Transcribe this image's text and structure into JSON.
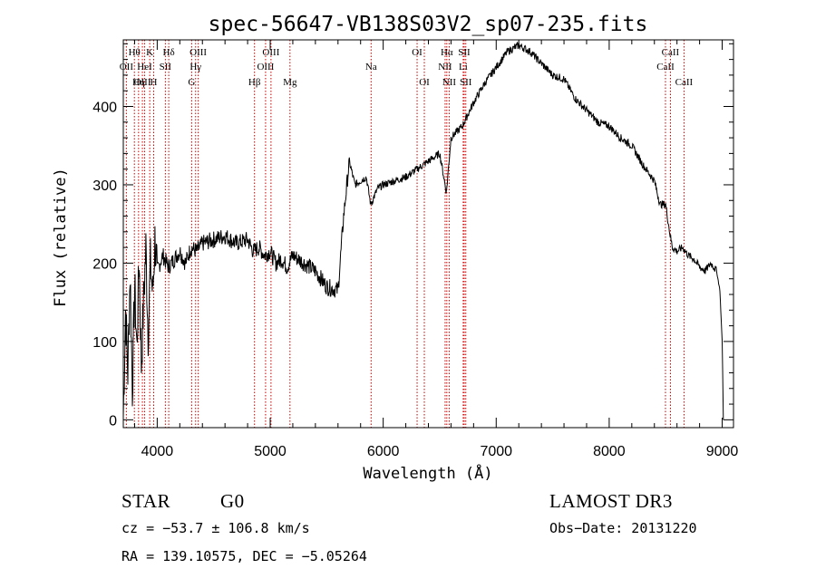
{
  "chart_data": {
    "type": "line",
    "title": "spec-56647-VB138S03V2_sp07-235.fits",
    "xlabel": "Wavelength (Å)",
    "ylabel": "Flux (relative)",
    "xlim": [
      3700,
      9100
    ],
    "ylim": [
      -10,
      485
    ],
    "xticks": [
      4000,
      5000,
      6000,
      7000,
      8000,
      9000
    ],
    "yticks": [
      0,
      100,
      200,
      300,
      400
    ],
    "grid": false,
    "line_color": "#000000",
    "marker_color": "#cc0000",
    "series": [
      {
        "x": [
          3700,
          3720,
          3740,
          3760,
          3780,
          3800,
          3820,
          3840,
          3860,
          3880,
          3900,
          3920,
          3940,
          3960,
          3980,
          4000,
          4050,
          4100,
          4150,
          4200,
          4250,
          4300,
          4350,
          4400,
          4500,
          4600,
          4700,
          4800,
          4850,
          4900,
          4950,
          5000,
          5050,
          5100,
          5150,
          5200,
          5300,
          5400,
          5500,
          5600,
          5650,
          5700,
          5750,
          5800,
          5850,
          5890,
          5950,
          6000,
          6100,
          6200,
          6300,
          6400,
          6500,
          6560,
          6600,
          6700,
          6800,
          6900,
          7000,
          7100,
          7200,
          7300,
          7400,
          7500,
          7600,
          7700,
          7800,
          7900,
          8000,
          8100,
          8200,
          8300,
          8400,
          8450,
          8500,
          8540,
          8560,
          8600,
          8650,
          8700,
          8750,
          8800,
          8850,
          8900,
          8950,
          8980,
          9000,
          9010
        ],
        "y": [
          5,
          140,
          60,
          190,
          40,
          170,
          90,
          210,
          70,
          150,
          220,
          110,
          200,
          160,
          230,
          190,
          210,
          195,
          205,
          215,
          200,
          220,
          215,
          225,
          230,
          235,
          225,
          230,
          215,
          220,
          210,
          215,
          200,
          205,
          195,
          210,
          200,
          190,
          170,
          165,
          260,
          330,
          300,
          305,
          310,
          275,
          295,
          300,
          305,
          310,
          320,
          330,
          340,
          290,
          360,
          375,
          405,
          430,
          450,
          470,
          478,
          470,
          455,
          440,
          435,
          410,
          395,
          380,
          375,
          360,
          350,
          325,
          305,
          275,
          275,
          235,
          220,
          215,
          220,
          210,
          205,
          195,
          190,
          200,
          190,
          165,
          100,
          0
        ]
      }
    ]
  },
  "line_labels": [
    {
      "label": "Hθ",
      "wave": 3798,
      "row": 1
    },
    {
      "label": "OII",
      "wave": 3727,
      "row": 2
    },
    {
      "label": "OIII",
      "wave": 3869,
      "row": 3
    },
    {
      "label": "K",
      "wave": 3934,
      "row": 1
    },
    {
      "label": "HeI",
      "wave": 3889,
      "row": 2
    },
    {
      "label": "Hη",
      "wave": 3835,
      "row": 3
    },
    {
      "label": "Hδ",
      "wave": 4102,
      "row": 1
    },
    {
      "label": "SII",
      "wave": 4072,
      "row": 2
    },
    {
      "label": "H",
      "wave": 3969,
      "row": 3
    },
    {
      "label": "OIII",
      "wave": 4363,
      "row": 1
    },
    {
      "label": "Hγ",
      "wave": 4340,
      "row": 2
    },
    {
      "label": "G",
      "wave": 4305,
      "row": 3
    },
    {
      "label": "OIII",
      "wave": 5007,
      "row": 1
    },
    {
      "label": "OIII",
      "wave": 4959,
      "row": 2
    },
    {
      "label": "Hβ",
      "wave": 4861,
      "row": 3
    },
    {
      "label": "Mg",
      "wave": 5175,
      "row": 3
    },
    {
      "label": "Na",
      "wave": 5893,
      "row": 2
    },
    {
      "label": "OI",
      "wave": 6300,
      "row": 1
    },
    {
      "label": "OI",
      "wave": 6364,
      "row": 3
    },
    {
      "label": "Hα",
      "wave": 6563,
      "row": 1
    },
    {
      "label": "NII",
      "wave": 6548,
      "row": 2
    },
    {
      "label": "NII",
      "wave": 6584,
      "row": 3
    },
    {
      "label": "SII",
      "wave": 6717,
      "row": 1
    },
    {
      "label": "Li",
      "wave": 6708,
      "row": 2
    },
    {
      "label": "SII",
      "wave": 6731,
      "row": 3
    },
    {
      "label": "CaII",
      "wave": 8542,
      "row": 1
    },
    {
      "label": "CaII",
      "wave": 8498,
      "row": 2
    },
    {
      "label": "CaII",
      "wave": 8662,
      "row": 3
    }
  ],
  "info": {
    "object_class": "STAR",
    "subclass": "G0",
    "survey": "LAMOST DR3",
    "cz": "cz = −53.7 ± 106.8 km/s",
    "obs_date": "Obs−Date: 20131220",
    "coords": "RA = 139.10575, DEC =  −5.05264"
  }
}
